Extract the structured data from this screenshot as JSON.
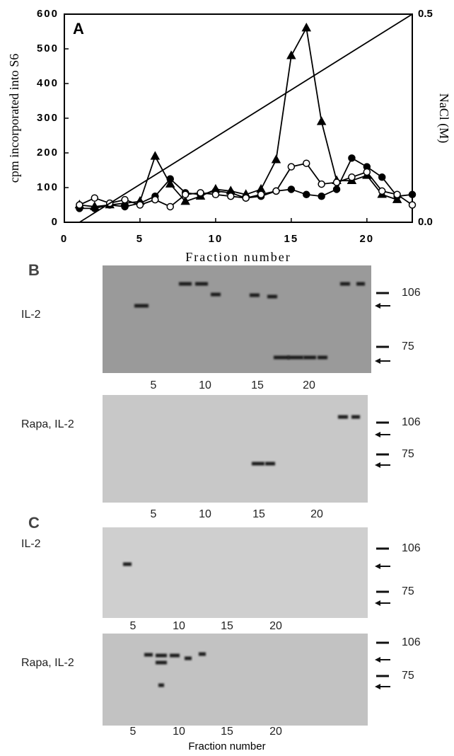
{
  "chart_data": {
    "type": "line",
    "panel_label": "A",
    "xlabel": "Fraction number",
    "ylabel": "cpm incorporated into S6",
    "y2label": "NaCl (M)",
    "xlim": [
      0,
      23
    ],
    "xticks": [
      0,
      5,
      10,
      15,
      20
    ],
    "ylim": [
      0,
      600
    ],
    "yticks": [
      0,
      100,
      200,
      300,
      400,
      500,
      600
    ],
    "y2lim": [
      0,
      0.5
    ],
    "y2ticks": [
      {
        "value": 0,
        "label": "0.0"
      },
      0.5
    ],
    "series": [
      {
        "color": "#000000",
        "marker": "triangle",
        "fill": "#000000",
        "x": [
          1,
          2,
          3,
          4,
          5,
          6,
          7,
          8,
          9,
          10,
          11,
          12,
          13,
          14,
          15,
          16,
          17,
          18,
          19,
          20,
          21,
          22
        ],
        "values": [
          50,
          45,
          50,
          55,
          60,
          190,
          110,
          60,
          75,
          95,
          90,
          80,
          95,
          180,
          480,
          560,
          290,
          120,
          120,
          135,
          80,
          65
        ]
      },
      {
        "color": "#000000",
        "marker": "circle",
        "fill": "#000000",
        "x": [
          1,
          2,
          3,
          4,
          5,
          6,
          7,
          8,
          9,
          10,
          11,
          12,
          13,
          14,
          15,
          16,
          17,
          18,
          19,
          20,
          21,
          22,
          23
        ],
        "values": [
          40,
          40,
          50,
          45,
          55,
          75,
          125,
          85,
          80,
          90,
          85,
          70,
          75,
          90,
          95,
          80,
          75,
          95,
          185,
          160,
          130,
          75,
          80
        ]
      },
      {
        "color": "#000000",
        "marker": "circle",
        "fill": "#ffffff",
        "x": [
          1,
          2,
          3,
          4,
          5,
          6,
          7,
          8,
          9,
          10,
          11,
          12,
          13,
          14,
          15,
          16,
          17,
          18,
          19,
          20,
          21,
          22,
          23
        ],
        "values": [
          50,
          70,
          55,
          65,
          50,
          65,
          45,
          80,
          85,
          80,
          75,
          70,
          80,
          90,
          160,
          170,
          110,
          115,
          130,
          145,
          90,
          80,
          50
        ]
      },
      {
        "color": "#000000",
        "axis": "y2",
        "x": [
          1,
          23
        ],
        "values": [
          0,
          0.5
        ]
      }
    ]
  },
  "gels": {
    "panels": [
      {
        "label": "B",
        "blots": [
          {
            "condition": "IL-2",
            "lanes": [
              "5",
              "10",
              "15",
              "20"
            ],
            "markers": [
              "106",
              "75"
            ]
          },
          {
            "condition": "Rapa, IL-2",
            "lanes": [
              "5",
              "10",
              "15",
              "20"
            ],
            "markers": [
              "106",
              "75"
            ]
          }
        ]
      },
      {
        "label": "C",
        "blots": [
          {
            "condition": "IL-2",
            "lanes": [
              "5",
              "10",
              "15",
              "20"
            ],
            "markers": [
              "106",
              "75"
            ]
          },
          {
            "condition": "Rapa, IL-2",
            "lanes": [
              "5",
              "10",
              "15",
              "20"
            ],
            "markers": [
              "106",
              "75"
            ]
          }
        ]
      }
    ],
    "xlabel": "Fraction number"
  }
}
